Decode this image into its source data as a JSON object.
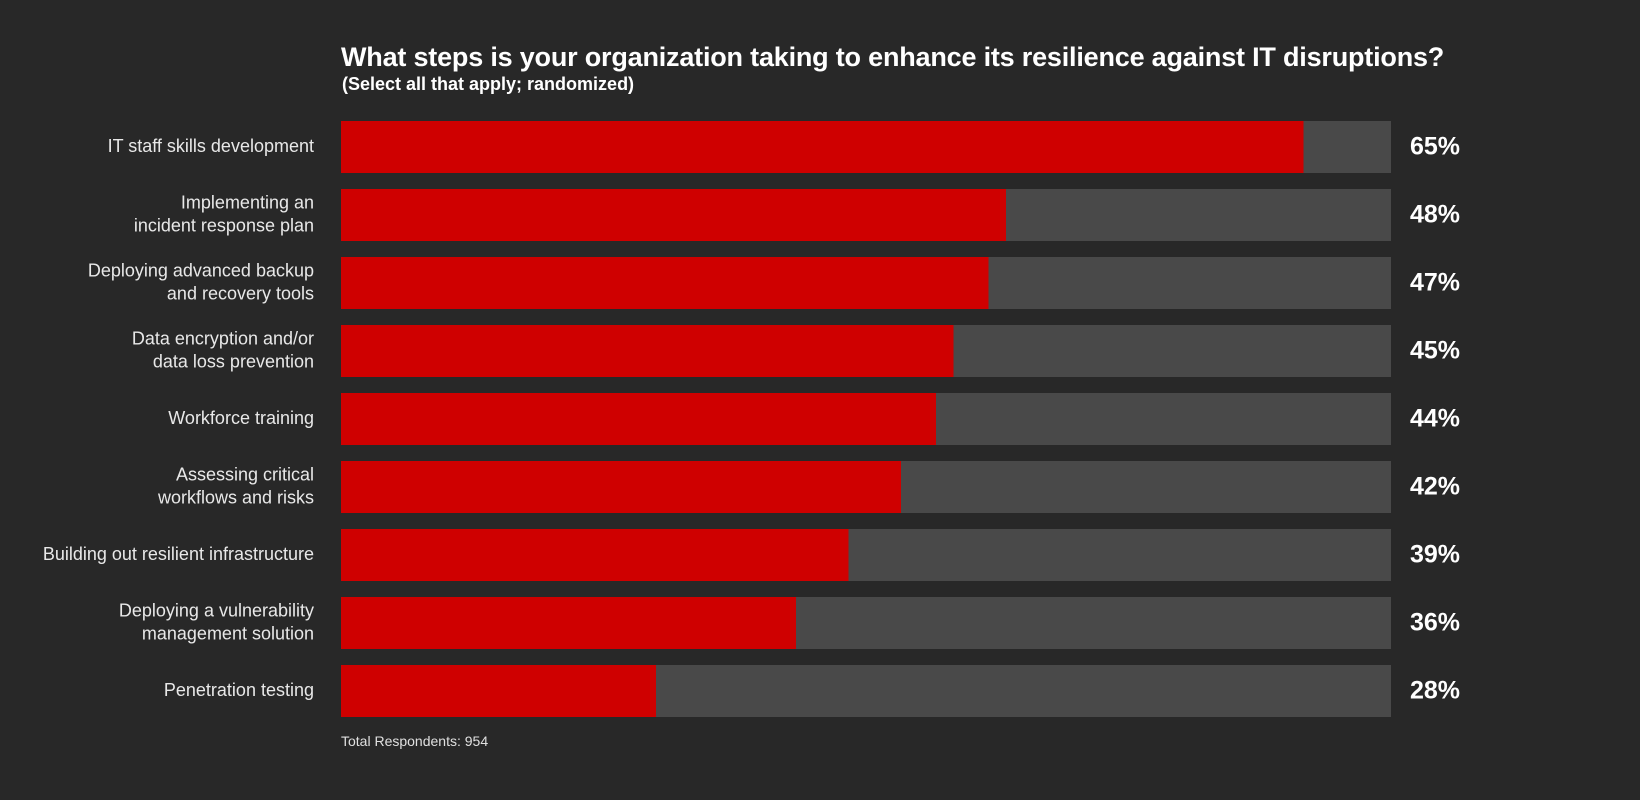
{
  "chart_data": {
    "type": "bar",
    "orientation": "horizontal",
    "title": "What steps is your organization taking to enhance its resilience against IT disruptions?",
    "subtitle": "(Select all that apply; randomized)",
    "categories": [
      [
        "IT staff skills development"
      ],
      [
        "Implementing an",
        "incident response plan"
      ],
      [
        "Deploying advanced backup",
        "and recovery tools"
      ],
      [
        "Data encryption and/or",
        "data loss prevention"
      ],
      [
        "Workforce training"
      ],
      [
        "Assessing critical",
        "workflows and risks"
      ],
      [
        "Building out resilient infrastructure"
      ],
      [
        "Deploying a vulnerability",
        "management solution"
      ],
      [
        "Penetration testing"
      ]
    ],
    "values": [
      65,
      48,
      47,
      45,
      44,
      42,
      39,
      36,
      28
    ],
    "value_labels": [
      "65%",
      "48%",
      "47%",
      "45%",
      "44%",
      "42%",
      "39%",
      "36%",
      "28%"
    ],
    "xlim": [
      10,
      70
    ],
    "grid": false,
    "legend": "none",
    "colors": {
      "bar": "#cf0000",
      "track": "#494949",
      "background": "#282828"
    }
  },
  "footnote": "Total Respondents: 954"
}
